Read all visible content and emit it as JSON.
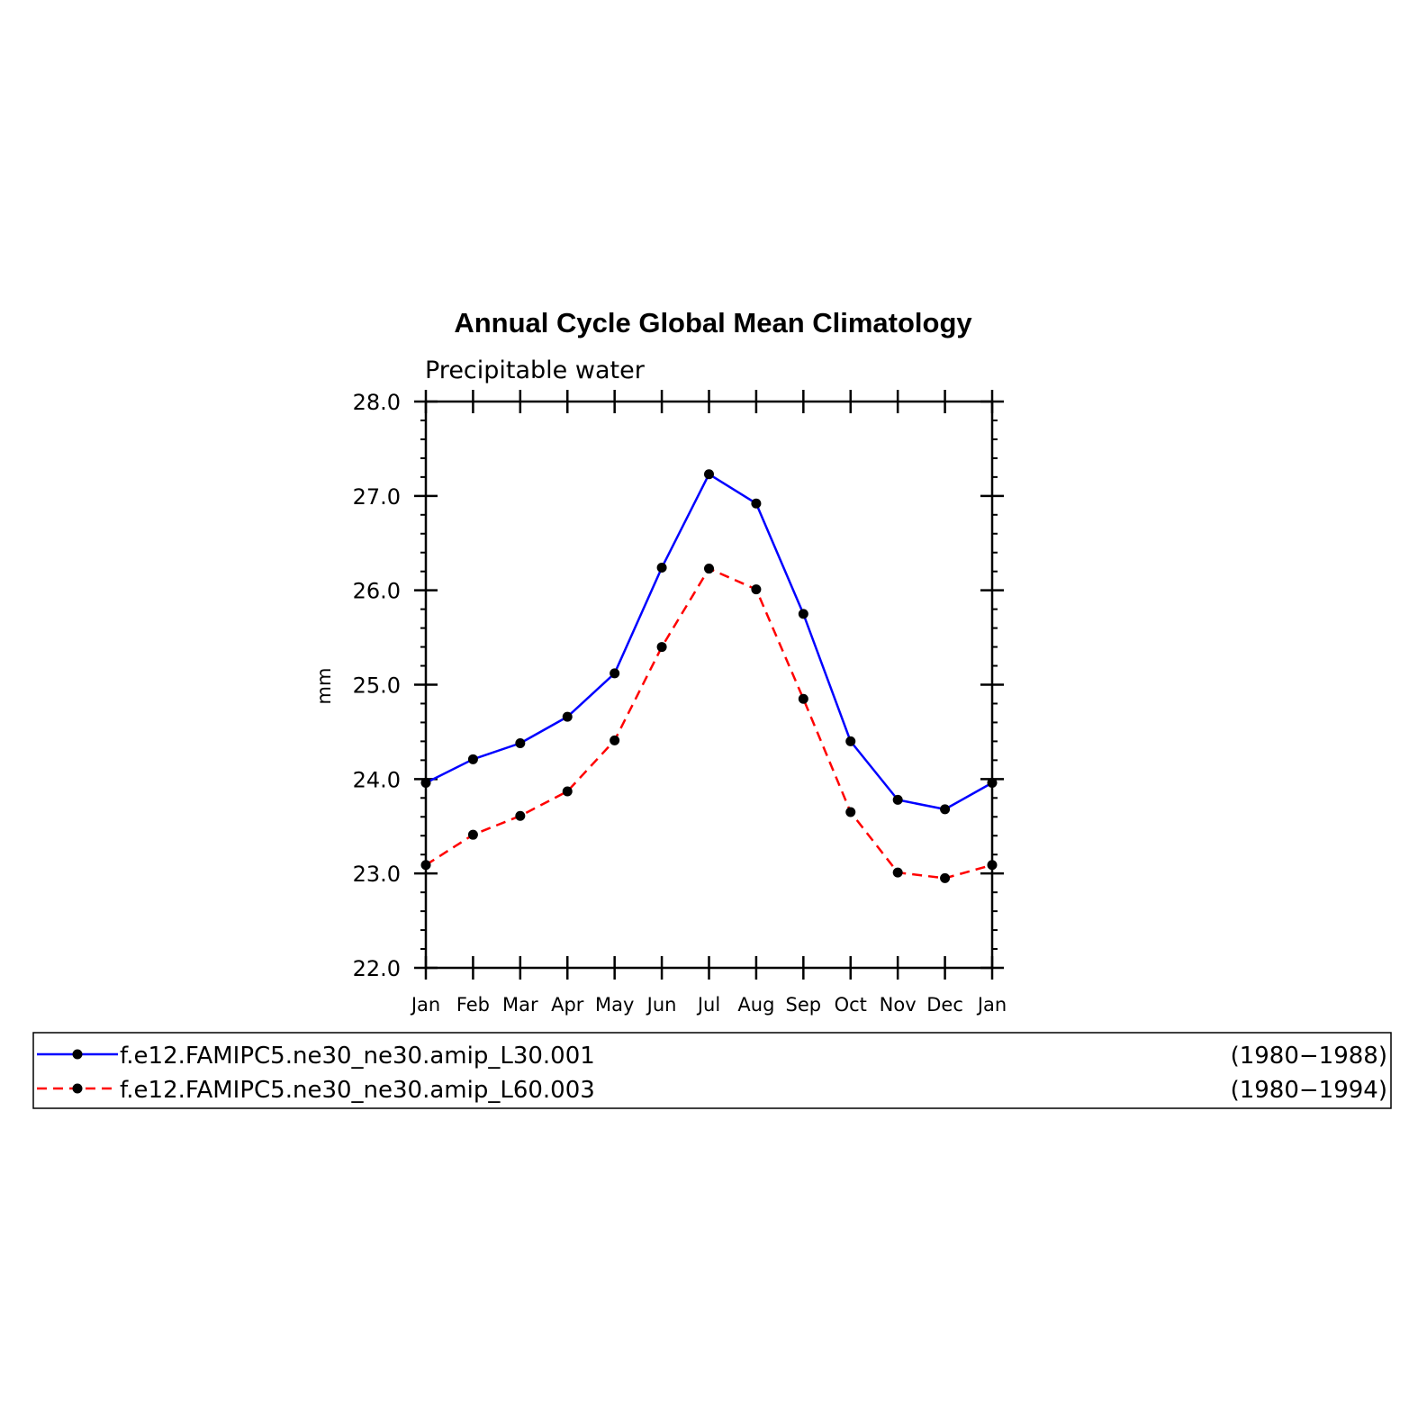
{
  "chart_data": {
    "type": "line",
    "title": "Annual Cycle Global Mean Climatology",
    "subtitle": "Precipitable water",
    "xlabel": "",
    "ylabel": "mm",
    "categories": [
      "Jan",
      "Feb",
      "Mar",
      "Apr",
      "May",
      "Jun",
      "Jul",
      "Aug",
      "Sep",
      "Oct",
      "Nov",
      "Dec",
      "Jan"
    ],
    "ylim": [
      22.0,
      28.0
    ],
    "yticks": [
      "22.0",
      "23.0",
      "24.0",
      "25.0",
      "26.0",
      "27.0",
      "28.0"
    ],
    "grid": false,
    "legend_position": "bottom",
    "series": [
      {
        "name": "f.e12.FAMIPC5.ne30_ne30.amip_L30.001",
        "period": "(1980−1988)",
        "color": "#0000ff",
        "line_style": "solid",
        "marker": "filled-circle",
        "values": [
          23.96,
          24.21,
          24.38,
          24.66,
          25.12,
          26.24,
          27.23,
          26.92,
          25.75,
          24.4,
          23.78,
          23.68,
          23.96
        ]
      },
      {
        "name": "f.e12.FAMIPC5.ne30_ne30.amip_L60.003",
        "period": "(1980−1994)",
        "color": "#ff0000",
        "line_style": "dashed",
        "marker": "filled-circle",
        "values": [
          23.09,
          23.41,
          23.61,
          23.87,
          24.41,
          25.4,
          26.23,
          26.01,
          24.85,
          23.65,
          23.01,
          22.95,
          23.09
        ]
      }
    ]
  }
}
